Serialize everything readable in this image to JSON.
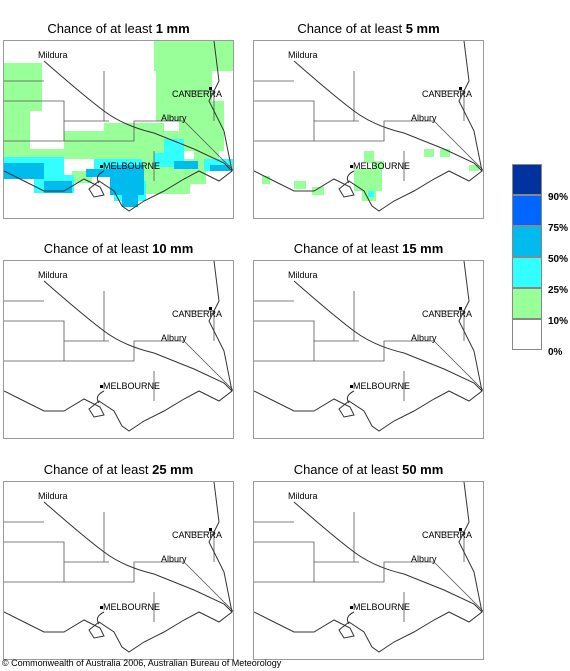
{
  "panels": [
    {
      "title_prefix": "Chance of at least ",
      "amount": "1 mm"
    },
    {
      "title_prefix": "Chance of at least ",
      "amount": "5 mm"
    },
    {
      "title_prefix": "Chance of at least ",
      "amount": "10 mm"
    },
    {
      "title_prefix": "Chance of at least ",
      "amount": "15 mm"
    },
    {
      "title_prefix": "Chance of at least ",
      "amount": "25 mm"
    },
    {
      "title_prefix": "Chance of at least ",
      "amount": "50 mm"
    }
  ],
  "map_labels": {
    "mildura": "Mildura",
    "canberra": "CANBERRA",
    "albury": "Albury",
    "melbourne": "MELBOURNE"
  },
  "legend": {
    "labels": [
      "90%",
      "75%",
      "50%",
      "25%",
      "10%",
      "0%"
    ],
    "colors": [
      "#0033a0",
      "#0066ff",
      "#00bbee",
      "#33ffff",
      "#99ff99",
      "#ffffff"
    ]
  },
  "copyright": "© Commonwealth of Australia 2006, Australian Bureau of Meteorology"
}
